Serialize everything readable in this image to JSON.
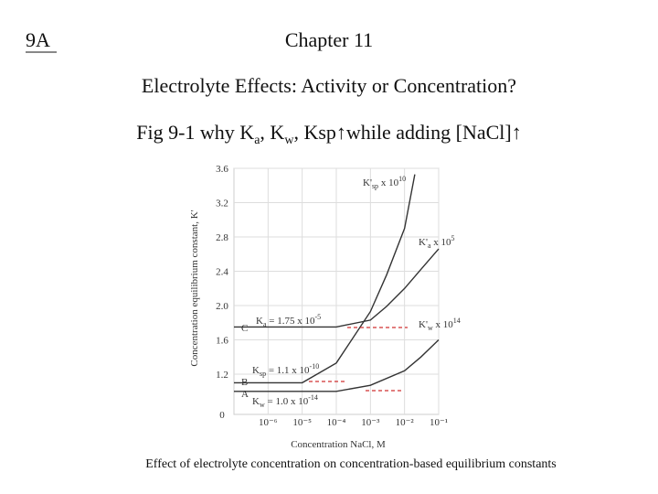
{
  "slide": {
    "label": "9A",
    "chapter": "Chapter 11",
    "heading": "Electrolyte Effects: Activity or Concentration?",
    "question": [
      {
        "t": "Fig 9-1 why K"
      },
      {
        "sub": "a"
      },
      {
        "t": ", K"
      },
      {
        "sub": "w"
      },
      {
        "t": ", Ksp↑while adding [NaCl]↑"
      }
    ],
    "caption": "Effect of electrolyte concentration on concentration-based equilibrium constants"
  },
  "chart_data": {
    "type": "line",
    "x_label": "Concentration NaCl, M",
    "y_label": "Concentration equilibrium constant, K'",
    "log_x": true,
    "grid": true,
    "xlim": [
      1e-07,
      0.1
    ],
    "xticks": [
      {
        "value": 1e-06,
        "label": "10⁻⁶"
      },
      {
        "value": 1e-05,
        "label": "10⁻⁵"
      },
      {
        "value": 0.0001,
        "label": "10⁻⁴"
      },
      {
        "value": 0.001,
        "label": "10⁻³"
      },
      {
        "value": 0.01,
        "label": "10⁻²"
      },
      {
        "value": 0.1,
        "label": "10⁻¹"
      }
    ],
    "ylim": [
      0,
      3.6
    ],
    "yticks": [
      0,
      1.2,
      1.6,
      {
        "value": 2.0,
        "label": "2.0"
      },
      2.4,
      2.8,
      3.2,
      3.6
    ],
    "series": [
      {
        "name": "K'w",
        "color": "#333333",
        "x": [
          1e-07,
          1e-05,
          0.0001,
          0.001,
          0.01,
          0.03,
          0.1
        ],
        "values": [
          1.0,
          1.0,
          1.0,
          1.07,
          1.24,
          1.4,
          1.6
        ]
      },
      {
        "name": "K'sp",
        "color": "#333333",
        "x": [
          1e-07,
          1e-05,
          0.0001,
          0.001,
          0.003,
          0.01,
          0.02
        ],
        "values": [
          1.1,
          1.1,
          1.33,
          1.93,
          2.36,
          2.9,
          3.53
        ]
      },
      {
        "name": "K'a",
        "color": "#333333",
        "x": [
          1e-07,
          0.0001,
          0.001,
          0.003,
          0.01,
          0.03,
          0.1
        ],
        "values": [
          1.75,
          1.75,
          1.83,
          1.99,
          2.2,
          2.42,
          2.66
        ]
      }
    ],
    "point_labels": [
      "C",
      "B",
      "A"
    ],
    "annotations": [
      [
        {
          "t": "K'"
        },
        {
          "sub": "sp"
        },
        {
          "t": " x 10"
        },
        {
          "sup": "10"
        }
      ],
      [
        {
          "t": "K'"
        },
        {
          "sub": "a"
        },
        {
          "t": " x 10"
        },
        {
          "sup": "5"
        }
      ],
      [
        {
          "t": "K'"
        },
        {
          "sub": "w"
        },
        {
          "t": " x 10"
        },
        {
          "sup": "14"
        }
      ],
      [
        {
          "t": "K"
        },
        {
          "sub": "a"
        },
        {
          "t": " = 1.75 x 10"
        },
        {
          "sup": "-5"
        }
      ],
      [
        {
          "t": "K"
        },
        {
          "sub": "sp"
        },
        {
          "t": " = 1.1 x 10"
        },
        {
          "sup": "-10"
        }
      ],
      [
        {
          "t": "K"
        },
        {
          "sub": "w"
        },
        {
          "t": " = 1.0 x 10"
        },
        {
          "sup": "-14"
        }
      ]
    ]
  }
}
